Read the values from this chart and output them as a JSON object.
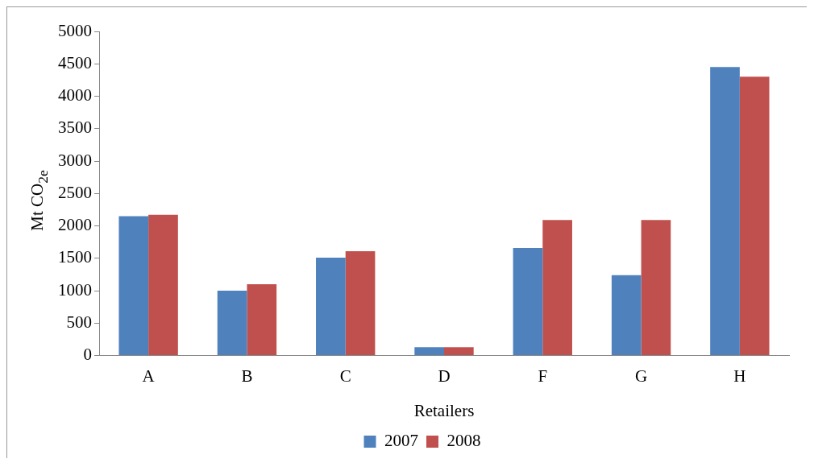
{
  "chart_data": {
    "type": "bar",
    "xlabel": "Retailers",
    "ylabel": "Mt CO$_{2e}$",
    "categories": [
      "A",
      "B",
      "C",
      "D",
      "F",
      "G",
      "H"
    ],
    "series": [
      {
        "name": "2007",
        "color": "#4f81bd",
        "values": [
          2150,
          1000,
          1510,
          130,
          1660,
          1240,
          4450
        ]
      },
      {
        "name": "2008",
        "color": "#c0504d",
        "values": [
          2170,
          1100,
          1610,
          130,
          2090,
          2090,
          4300
        ]
      }
    ],
    "ylim": [
      0,
      5000
    ],
    "yticks": [
      0,
      500,
      1000,
      1500,
      2000,
      2500,
      3000,
      3500,
      4000,
      4500,
      5000
    ],
    "grid": false,
    "legend": "bottom"
  }
}
